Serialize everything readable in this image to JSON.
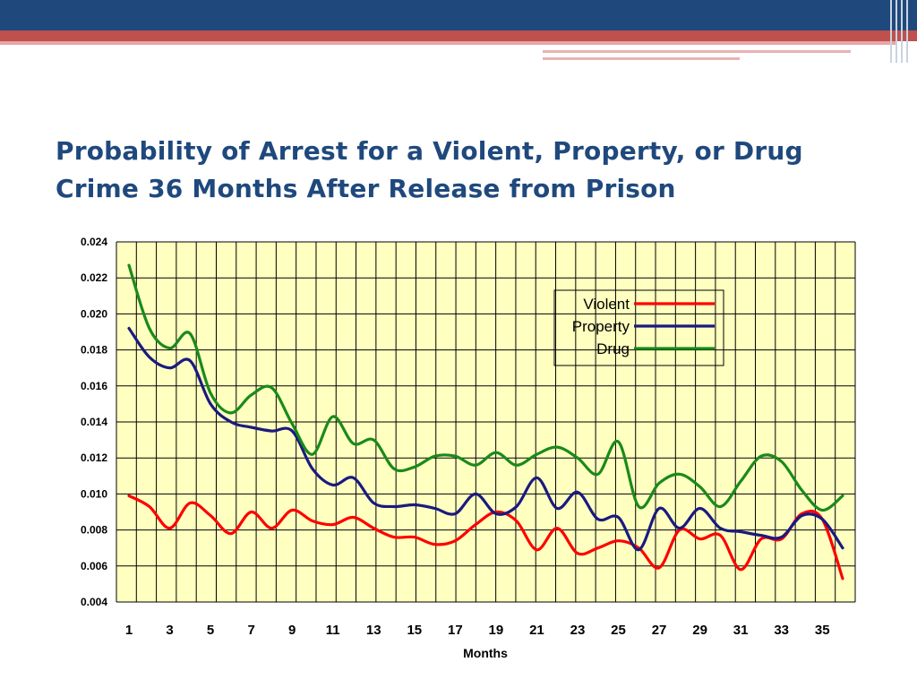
{
  "slide": {
    "title": "Probability of Arrest for a Violent, Property, or Drug Crime 36 Months After Release from Prison"
  },
  "colors": {
    "title": "#1f497d",
    "header_bar": "#1f497d",
    "accent_band": "#c0504d",
    "plot_background": "#ffffc0",
    "grid": "#000000"
  },
  "chart_data": {
    "type": "line",
    "title": "",
    "xlabel": "Months",
    "ylabel": "",
    "ylim": [
      0.004,
      0.024
    ],
    "xlim": [
      1,
      36
    ],
    "grid": true,
    "legend_position": "top-right",
    "y_ticks": [
      "0.004",
      "0.006",
      "0.008",
      "0.010",
      "0.012",
      "0.014",
      "0.016",
      "0.018",
      "0.020",
      "0.022",
      "0.024"
    ],
    "x_tick_labels": [
      "1",
      "3",
      "5",
      "7",
      "9",
      "11",
      "13",
      "15",
      "17",
      "19",
      "21",
      "23",
      "25",
      "27",
      "29",
      "31",
      "33",
      "35"
    ],
    "x": [
      1,
      2,
      3,
      4,
      5,
      6,
      7,
      8,
      9,
      10,
      11,
      12,
      13,
      14,
      15,
      16,
      17,
      18,
      19,
      20,
      21,
      22,
      23,
      24,
      25,
      26,
      27,
      28,
      29,
      30,
      31,
      32,
      33,
      34,
      35,
      36
    ],
    "series": [
      {
        "name": "Violent",
        "color": "#ff0000",
        "values": [
          0.0099,
          0.0093,
          0.0081,
          0.0095,
          0.0088,
          0.0078,
          0.009,
          0.0081,
          0.0091,
          0.0085,
          0.0083,
          0.0087,
          0.0081,
          0.0076,
          0.0076,
          0.0072,
          0.0074,
          0.0083,
          0.009,
          0.0085,
          0.0069,
          0.0081,
          0.0067,
          0.007,
          0.0074,
          0.007,
          0.0059,
          0.008,
          0.0075,
          0.0077,
          0.0058,
          0.0075,
          0.0075,
          0.0089,
          0.0086,
          0.0053
        ]
      },
      {
        "name": "Property",
        "color": "#1a1a80",
        "values": [
          0.0192,
          0.0176,
          0.017,
          0.0174,
          0.015,
          0.014,
          0.0137,
          0.0135,
          0.0135,
          0.0114,
          0.0105,
          0.0109,
          0.0095,
          0.0093,
          0.0094,
          0.0092,
          0.0089,
          0.01,
          0.0089,
          0.0093,
          0.0109,
          0.0092,
          0.0101,
          0.0086,
          0.0087,
          0.0069,
          0.0092,
          0.0081,
          0.0092,
          0.0081,
          0.0079,
          0.0077,
          0.0076,
          0.0088,
          0.0086,
          0.007
        ]
      },
      {
        "name": "Drug",
        "color": "#1a8a1a",
        "values": [
          0.0227,
          0.0192,
          0.0181,
          0.0189,
          0.0156,
          0.0145,
          0.0155,
          0.0159,
          0.0139,
          0.0122,
          0.0143,
          0.0128,
          0.013,
          0.0114,
          0.0115,
          0.0121,
          0.0121,
          0.0116,
          0.0123,
          0.0116,
          0.0122,
          0.0126,
          0.012,
          0.0111,
          0.0129,
          0.0093,
          0.0106,
          0.0111,
          0.0104,
          0.0093,
          0.0107,
          0.0121,
          0.0118,
          0.0102,
          0.0091,
          0.0099
        ]
      }
    ]
  }
}
